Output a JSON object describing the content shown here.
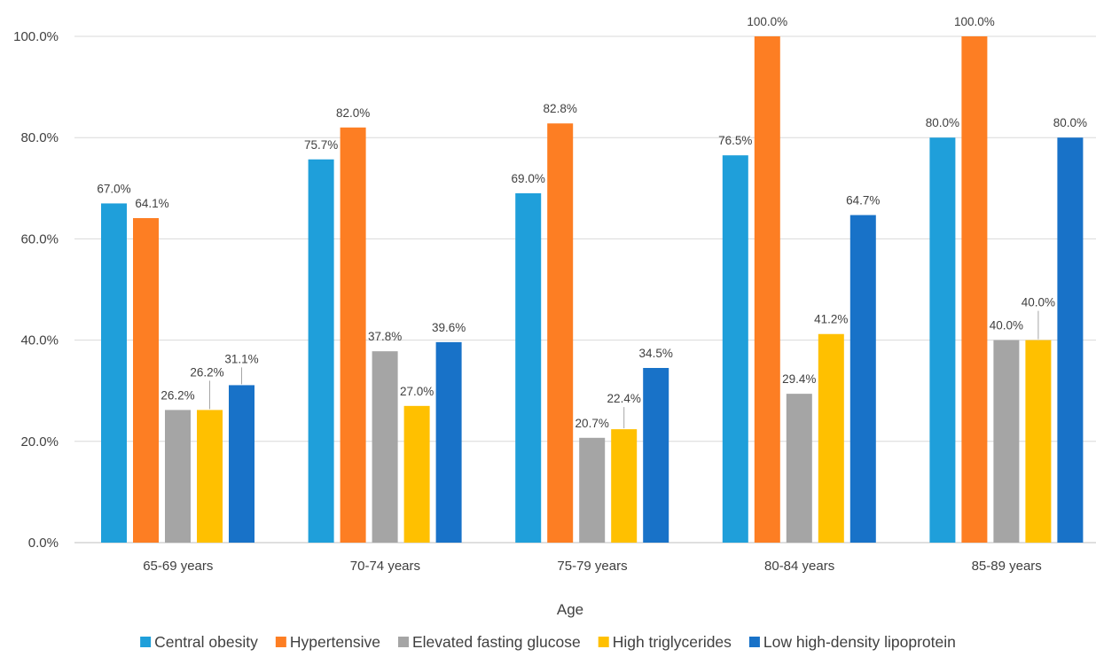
{
  "chart_data": {
    "type": "bar",
    "title": "",
    "xlabel": "Age",
    "ylabel": "",
    "ylim": [
      0,
      100
    ],
    "yticks": [
      "0.0%",
      "20.0%",
      "40.0%",
      "60.0%",
      "80.0%",
      "100.0%"
    ],
    "grid": true,
    "legend_position": "bottom",
    "categories": [
      "65-69 years",
      "70-74 years",
      "75-79 years",
      "80-84 years",
      "85-89 years"
    ],
    "series": [
      {
        "name": "Central obesity",
        "color": "#1f9fda",
        "values": [
          67.0,
          75.7,
          69.0,
          76.5,
          80.0
        ],
        "labels": [
          "67.0%",
          "75.7%",
          "69.0%",
          "76.5%",
          "80.0%"
        ]
      },
      {
        "name": "Hypertensive",
        "color": "#fd7e23",
        "values": [
          64.1,
          82.0,
          82.8,
          100.0,
          100.0
        ],
        "labels": [
          "64.1%",
          "82.0%",
          "82.8%",
          "100.0%",
          "100.0%"
        ]
      },
      {
        "name": "Elevated fasting glucose",
        "color": "#a5a5a5",
        "values": [
          26.2,
          37.8,
          20.7,
          29.4,
          40.0
        ],
        "labels": [
          "26.2%",
          "37.8%",
          "20.7%",
          "29.4%",
          "40.0%"
        ]
      },
      {
        "name": "High triglycerides",
        "color": "#ffc000",
        "values": [
          26.2,
          27.0,
          22.4,
          41.2,
          40.0
        ],
        "labels": [
          "26.2%",
          "27.0%",
          "22.4%",
          "41.2%",
          "40.0%"
        ]
      },
      {
        "name": "Low high-density lipoprotein",
        "color": "#1872c8",
        "values": [
          31.1,
          39.6,
          34.5,
          64.7,
          80.0
        ],
        "labels": [
          "31.1%",
          "39.6%",
          "34.5%",
          "64.7%",
          "80.0%"
        ]
      }
    ]
  }
}
